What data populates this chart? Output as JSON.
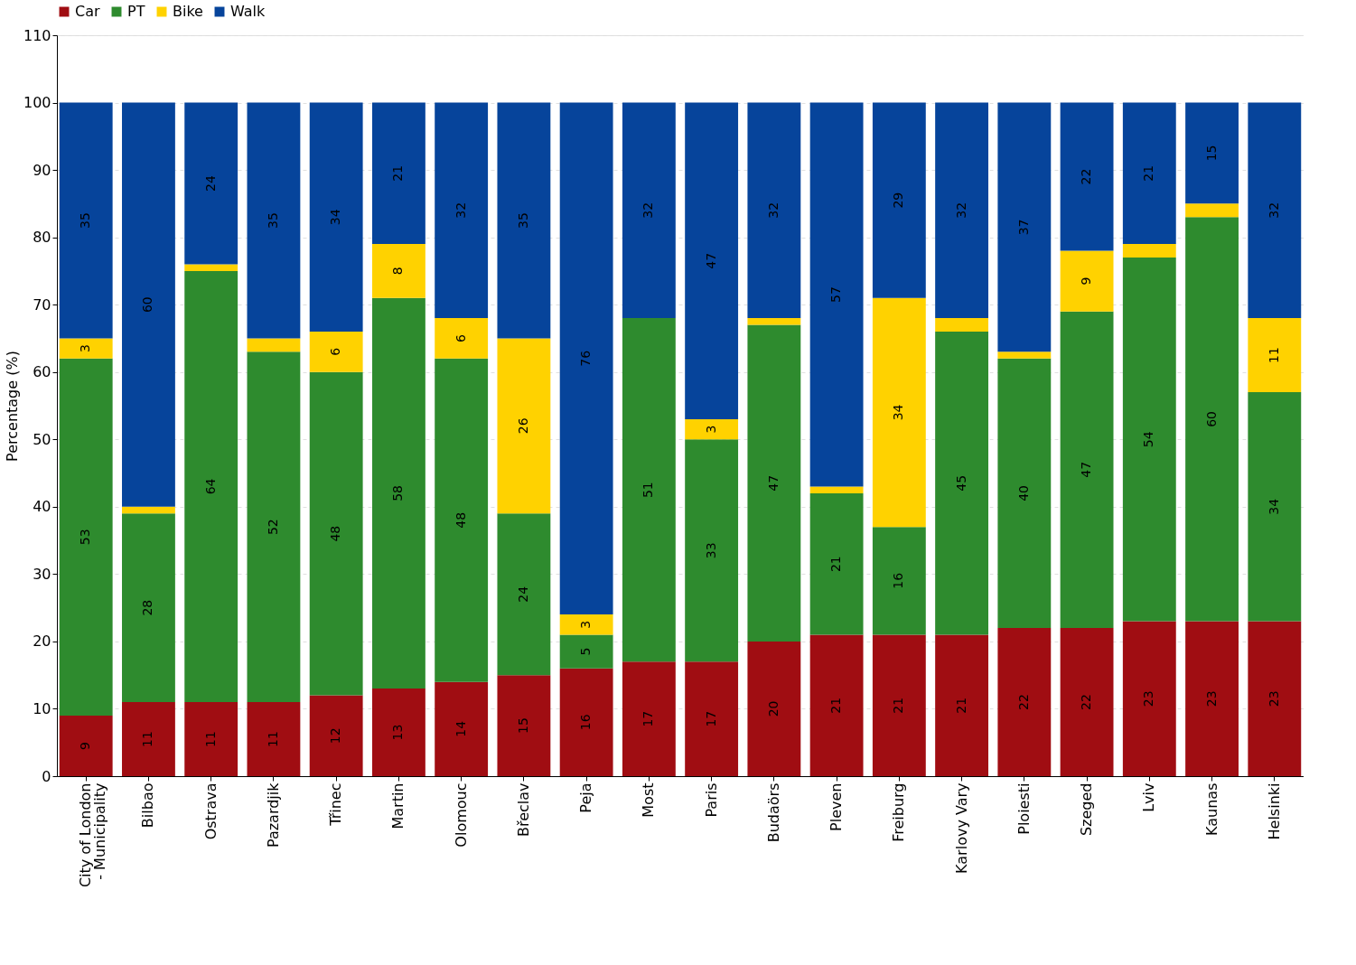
{
  "chart_data": {
    "type": "bar",
    "stacked": true,
    "ylabel": "Percentage (%)",
    "categories": [
      "City of London\n- Municipality",
      "Bilbao",
      "Ostrava",
      "Pazardjik",
      "Třinec",
      "Martin",
      "Olomouc",
      "Břeclav",
      "Peja",
      "Most",
      "Paris",
      "Budaörs",
      "Pleven",
      "Freiburg",
      "Karlovy Vary",
      "Ploiesti",
      "Szeged",
      "Lviv",
      "Kaunas",
      "Helsinki"
    ],
    "series": [
      {
        "name": "Car",
        "color": "#a00d12",
        "values": [
          9,
          11,
          11,
          11,
          12,
          13,
          14,
          15,
          16,
          17,
          17,
          20,
          21,
          21,
          21,
          22,
          22,
          23,
          23,
          23
        ],
        "value_labels": [
          "9",
          "11",
          "11",
          "11",
          "12",
          "13",
          "14",
          "15",
          "16",
          "17",
          "17",
          "20",
          "21",
          "21",
          "21",
          "22",
          "22",
          "23",
          "23",
          "23"
        ]
      },
      {
        "name": "PT",
        "color": "#2e8b2e",
        "values": [
          53,
          28,
          64,
          52,
          48,
          58,
          48,
          24,
          5,
          51,
          33,
          47,
          21,
          16,
          45,
          40,
          47,
          54,
          60,
          34
        ],
        "value_labels": [
          "53",
          "28",
          "64",
          "52",
          "48",
          "58",
          "48",
          "24",
          "5",
          "51",
          "33",
          "47",
          "21",
          "16",
          "45",
          "40",
          "47",
          "54",
          "60",
          "34"
        ]
      },
      {
        "name": "Bike",
        "color": "#ffd200",
        "values": [
          3,
          1,
          1,
          2,
          6,
          8,
          6,
          26,
          3,
          0,
          3,
          1,
          1,
          34,
          2,
          1,
          9,
          2,
          2,
          11
        ],
        "value_labels": [
          "3",
          null,
          null,
          null,
          "6",
          "8",
          "6",
          "26",
          "3",
          null,
          "3",
          null,
          null,
          "34",
          null,
          null,
          "9",
          null,
          null,
          "11"
        ]
      },
      {
        "name": "Walk",
        "color": "#06449b",
        "values": [
          35,
          60,
          24,
          35,
          34,
          21,
          32,
          35,
          76,
          32,
          47,
          32,
          57,
          29,
          32,
          37,
          22,
          21,
          15,
          32
        ],
        "value_labels": [
          "35",
          "60",
          "24",
          "35",
          "34",
          "21",
          "32",
          "35",
          "76",
          "32",
          "47",
          "32",
          "57",
          "29",
          "32",
          "37",
          "22",
          "21",
          "15",
          "32"
        ]
      }
    ],
    "ylim": [
      0,
      110
    ],
    "yticks": [
      0,
      10,
      20,
      30,
      40,
      50,
      60,
      70,
      80,
      90,
      100,
      110
    ],
    "grid": "y",
    "legend": "top"
  }
}
